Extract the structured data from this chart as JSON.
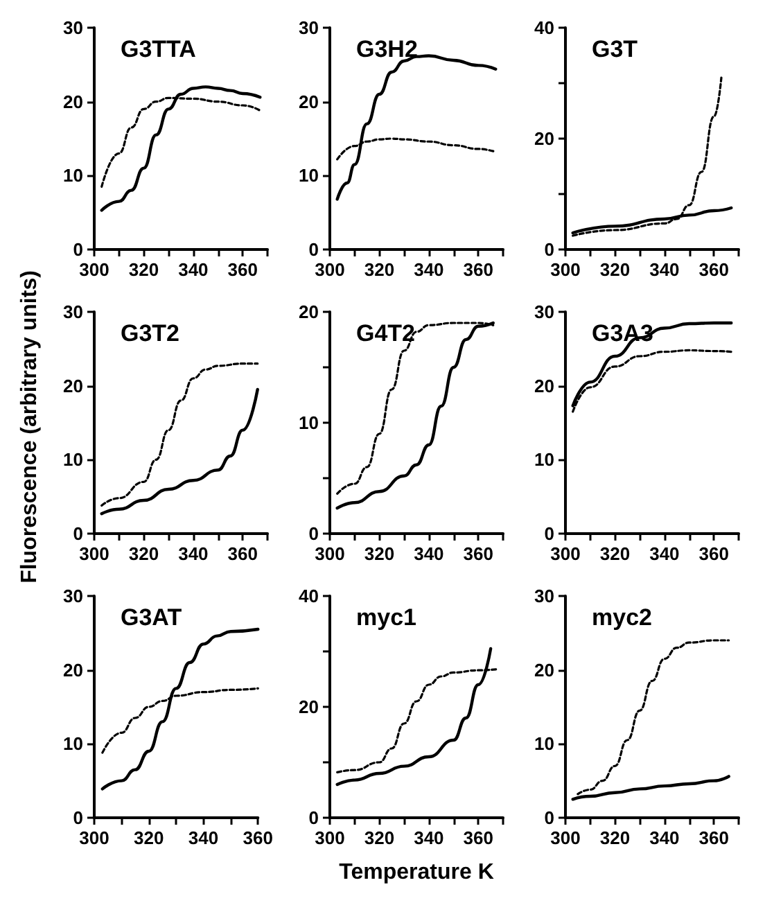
{
  "chart_data": [
    {
      "type": "line",
      "title": "G3TTA",
      "marker": "none",
      "xlim": [
        300,
        370
      ],
      "xticks": [
        300,
        {
          "value": 310,
          "label": null
        },
        320,
        {
          "value": 330,
          "label": null
        },
        340,
        {
          "value": 350,
          "label": null
        },
        360,
        {
          "value": 370,
          "label": null
        }
      ],
      "ylim": [
        0,
        30
      ],
      "yticks": [
        0,
        10,
        20,
        30
      ],
      "series": [
        {
          "color": "#000000",
          "line_style": "solid",
          "x": [
            303,
            310,
            315,
            320,
            325,
            330,
            335,
            340,
            345,
            350,
            355,
            360,
            367
          ],
          "values": [
            5.3,
            6.5,
            8,
            11,
            15.5,
            19,
            21,
            21.8,
            22,
            21.8,
            21.5,
            21.1,
            20.6
          ]
        },
        {
          "color": "#000000",
          "line_style": "dashed",
          "x": [
            303,
            310,
            315,
            320,
            325,
            330,
            340,
            350,
            360,
            367
          ],
          "values": [
            8.5,
            13,
            16.5,
            19,
            20,
            20.5,
            20.4,
            20,
            19.5,
            18.8
          ]
        }
      ]
    },
    {
      "type": "line",
      "title": "G3H2",
      "marker": "none",
      "xlim": [
        300,
        370
      ],
      "xticks": [
        300,
        {
          "value": 310,
          "label": null
        },
        320,
        {
          "value": 330,
          "label": null
        },
        340,
        {
          "value": 350,
          "label": null
        },
        360,
        {
          "value": 370,
          "label": null
        }
      ],
      "ylim": [
        0,
        30
      ],
      "yticks": [
        0,
        10,
        20,
        30
      ],
      "series": [
        {
          "color": "#000000",
          "line_style": "solid",
          "x": [
            303,
            307,
            310,
            315,
            320,
            325,
            330,
            335,
            340,
            350,
            360,
            367
          ],
          "values": [
            6.8,
            9,
            11.5,
            17,
            21,
            24,
            25.5,
            26.1,
            26.2,
            25.6,
            24.9,
            24.4
          ]
        },
        {
          "color": "#000000",
          "line_style": "dashed",
          "x": [
            303,
            310,
            315,
            320,
            325,
            330,
            340,
            350,
            360,
            367
          ],
          "values": [
            12.2,
            14,
            14.6,
            14.9,
            15,
            14.9,
            14.6,
            14.1,
            13.6,
            13.2
          ]
        }
      ]
    },
    {
      "type": "line",
      "title": "G3T",
      "marker": "none",
      "xlim": [
        300,
        370
      ],
      "xticks": [
        300,
        {
          "value": 310,
          "label": null
        },
        320,
        {
          "value": 330,
          "label": null
        },
        340,
        {
          "value": 350,
          "label": null
        },
        360,
        {
          "value": 370,
          "label": null
        }
      ],
      "ylim": [
        0,
        40
      ],
      "yticks": [
        0,
        {
          "value": 10,
          "label": null
        },
        20,
        {
          "value": 30,
          "label": null
        },
        40
      ],
      "series": [
        {
          "color": "#000000",
          "line_style": "solid",
          "x": [
            303,
            320,
            340,
            350,
            360,
            367
          ],
          "values": [
            3,
            4.2,
            5.5,
            6.2,
            7,
            7.5
          ]
        },
        {
          "color": "#000000",
          "line_style": "dashed",
          "x": [
            303,
            320,
            340,
            345,
            350,
            355,
            360,
            363
          ],
          "values": [
            2.5,
            3.5,
            4.7,
            5.5,
            8,
            14,
            24,
            31
          ]
        }
      ]
    },
    {
      "type": "line",
      "title": "G3T2",
      "ylabel": "Fluorescence (arbitrary units)",
      "marker": "none",
      "xlim": [
        300,
        370
      ],
      "xticks": [
        300,
        {
          "value": 310,
          "label": null
        },
        320,
        {
          "value": 330,
          "label": null
        },
        340,
        {
          "value": 350,
          "label": null
        },
        360,
        {
          "value": 370,
          "label": null
        }
      ],
      "ylim": [
        0,
        30
      ],
      "yticks": [
        0,
        10,
        20,
        30
      ],
      "series": [
        {
          "color": "#000000",
          "line_style": "solid",
          "x": [
            303,
            310,
            320,
            330,
            340,
            350,
            355,
            360,
            366
          ],
          "values": [
            2.7,
            3.3,
            4.5,
            6,
            7.2,
            8.6,
            10.5,
            14,
            19.5
          ]
        },
        {
          "color": "#000000",
          "line_style": "dashed",
          "x": [
            303,
            310,
            320,
            325,
            330,
            335,
            340,
            345,
            350,
            360,
            366
          ],
          "values": [
            3.8,
            4.8,
            7,
            10,
            14,
            18,
            21,
            22.2,
            22.7,
            23,
            23
          ]
        }
      ]
    },
    {
      "type": "line",
      "title": "G4T2",
      "marker": "none",
      "xlim": [
        300,
        370
      ],
      "xticks": [
        300,
        {
          "value": 310,
          "label": null
        },
        320,
        {
          "value": 330,
          "label": null
        },
        340,
        {
          "value": 350,
          "label": null
        },
        360,
        {
          "value": 370,
          "label": null
        }
      ],
      "ylim": [
        0,
        20
      ],
      "yticks": [
        0,
        {
          "value": 5,
          "label": null
        },
        10,
        {
          "value": 15,
          "label": null
        },
        20
      ],
      "series": [
        {
          "color": "#000000",
          "line_style": "solid",
          "x": [
            303,
            310,
            320,
            330,
            335,
            340,
            345,
            350,
            355,
            360,
            366
          ],
          "values": [
            2.3,
            2.8,
            3.8,
            5.2,
            6.2,
            8,
            11.5,
            15,
            17.5,
            18.7,
            19
          ]
        },
        {
          "color": "#000000",
          "line_style": "dashed",
          "x": [
            303,
            310,
            315,
            320,
            325,
            330,
            335,
            340,
            350,
            360,
            366
          ],
          "values": [
            3.6,
            4.5,
            6,
            9,
            13,
            16.5,
            18.2,
            18.8,
            19,
            19,
            18.8
          ]
        }
      ]
    },
    {
      "type": "line",
      "title": "G3A3",
      "marker": "none",
      "xlim": [
        300,
        370
      ],
      "xticks": [
        300,
        {
          "value": 310,
          "label": null
        },
        320,
        {
          "value": 330,
          "label": null
        },
        340,
        {
          "value": 350,
          "label": null
        },
        360,
        {
          "value": 370,
          "label": null
        }
      ],
      "ylim": [
        0,
        30
      ],
      "yticks": [
        0,
        10,
        20,
        30
      ],
      "series": [
        {
          "color": "#000000",
          "line_style": "solid",
          "x": [
            303,
            310,
            320,
            330,
            340,
            350,
            360,
            367
          ],
          "values": [
            17.3,
            20.5,
            24,
            26.5,
            27.8,
            28.4,
            28.5,
            28.5
          ]
        },
        {
          "color": "#000000",
          "line_style": "dashed",
          "x": [
            303,
            310,
            320,
            330,
            340,
            350,
            360,
            367
          ],
          "values": [
            16.5,
            19.8,
            22.6,
            24,
            24.6,
            24.8,
            24.7,
            24.6
          ]
        }
      ]
    },
    {
      "type": "line",
      "title": "G3AT",
      "marker": "none",
      "xlim": [
        300,
        360
      ],
      "xticks": [
        300,
        {
          "value": 310,
          "label": null
        },
        320,
        {
          "value": 330,
          "label": null
        },
        340,
        {
          "value": 350,
          "label": null
        },
        360
      ],
      "ylim": [
        0,
        30
      ],
      "yticks": [
        0,
        10,
        20,
        30
      ],
      "series": [
        {
          "color": "#000000",
          "line_style": "solid",
          "x": [
            303,
            310,
            315,
            320,
            325,
            330,
            335,
            340,
            345,
            350,
            360
          ],
          "values": [
            3.9,
            5,
            6.5,
            9,
            13,
            17.5,
            21,
            23.5,
            24.6,
            25.2,
            25.5
          ]
        },
        {
          "color": "#000000",
          "line_style": "dashed",
          "x": [
            303,
            310,
            315,
            320,
            325,
            330,
            340,
            350,
            360
          ],
          "values": [
            8.8,
            11.5,
            13.5,
            15,
            15.8,
            16.5,
            17,
            17.3,
            17.5
          ]
        }
      ]
    },
    {
      "type": "line",
      "title": "myc1",
      "xlabel": "Temperature K",
      "marker": "none",
      "xlim": [
        300,
        370
      ],
      "xticks": [
        300,
        {
          "value": 310,
          "label": null
        },
        320,
        {
          "value": 330,
          "label": null
        },
        340,
        {
          "value": 350,
          "label": null
        },
        360,
        {
          "value": 370,
          "label": null
        }
      ],
      "ylim": [
        0,
        40
      ],
      "yticks": [
        0,
        {
          "value": 10,
          "label": null
        },
        20,
        {
          "value": 30,
          "label": null
        },
        40
      ],
      "series": [
        {
          "color": "#000000",
          "line_style": "solid",
          "x": [
            303,
            310,
            320,
            330,
            340,
            350,
            355,
            360,
            365
          ],
          "values": [
            6,
            6.8,
            8,
            9.3,
            11,
            14,
            18,
            24,
            30.5
          ]
        },
        {
          "color": "#000000",
          "line_style": "dashed",
          "x": [
            303,
            310,
            320,
            325,
            330,
            335,
            340,
            345,
            350,
            360,
            368
          ],
          "values": [
            8.2,
            8.6,
            10,
            12.5,
            17,
            21,
            24,
            25.5,
            26.2,
            26.6,
            26.8
          ]
        }
      ]
    },
    {
      "type": "line",
      "title": "myc2",
      "marker": "none",
      "xlim": [
        300,
        370
      ],
      "xticks": [
        300,
        {
          "value": 310,
          "label": null
        },
        320,
        {
          "value": 330,
          "label": null
        },
        340,
        {
          "value": 350,
          "label": null
        },
        360,
        {
          "value": 370,
          "label": null
        }
      ],
      "ylim": [
        0,
        30
      ],
      "yticks": [
        0,
        10,
        20,
        30
      ],
      "series": [
        {
          "color": "#000000",
          "line_style": "solid",
          "x": [
            303,
            310,
            320,
            330,
            340,
            350,
            360,
            366
          ],
          "values": [
            2.5,
            2.9,
            3.4,
            3.9,
            4.3,
            4.6,
            5,
            5.6
          ]
        },
        {
          "color": "#000000",
          "line_style": "dashed",
          "x": [
            305,
            310,
            315,
            320,
            325,
            330,
            335,
            340,
            345,
            350,
            360,
            366
          ],
          "values": [
            3.2,
            3.8,
            5,
            7,
            10.5,
            14.5,
            18.5,
            21.5,
            23,
            23.7,
            24,
            24
          ]
        }
      ]
    }
  ]
}
